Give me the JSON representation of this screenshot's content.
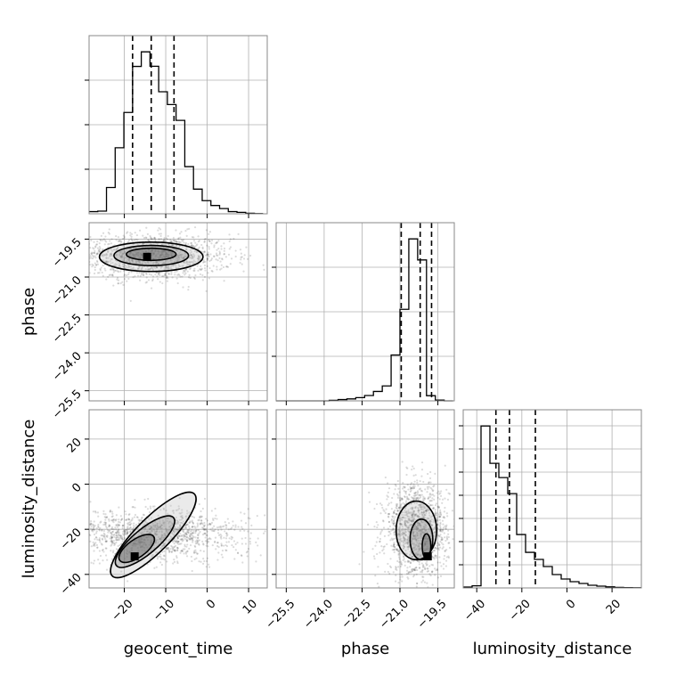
{
  "chart_data": {
    "type": "corner",
    "parameters": [
      "geocent_time",
      "phase",
      "luminosity_distance"
    ],
    "axis_labels": {
      "geocent_time": "geocent_time",
      "phase": "phase",
      "luminosity_distance": "luminosity_distance"
    },
    "ranges": {
      "geocent_time": [
        -28.5,
        14.5
      ],
      "phase": [
        -25.9,
        -18.85
      ],
      "luminosity_distance": [
        -46,
        33
      ]
    },
    "ticks": {
      "geocent_time": {
        "values": [
          -20,
          -10,
          0,
          10
        ],
        "labels": [
          "−20",
          "−10",
          "0",
          "10"
        ]
      },
      "phase": {
        "values": [
          -25.5,
          -24.0,
          -22.5,
          -21.0,
          -19.5
        ],
        "labels": [
          "−25.5",
          "−24.0",
          "−22.5",
          "−21.0",
          "−19.5"
        ]
      },
      "luminosity_distance": {
        "values": [
          -40,
          -20,
          0,
          20
        ],
        "labels": [
          "−40",
          "−20",
          "0",
          "20"
        ]
      }
    },
    "hist_yticks": {
      "geocent_time": [
        0.25,
        0.5,
        0.75
      ],
      "phase": [
        0.25,
        0.5,
        0.75
      ],
      "luminosity_distance": [
        0.13,
        0.26,
        0.39,
        0.52,
        0.65,
        0.78,
        0.91
      ]
    },
    "quantiles": {
      "geocent_time": [
        -18,
        -13.5,
        -8
      ],
      "phase": [
        -20.95,
        -20.2,
        -19.75
      ],
      "luminosity_distance": [
        -31.5,
        -25.5,
        -14
      ]
    },
    "histograms": {
      "geocent_time": {
        "bin_edges": [
          -28.5,
          -26.4,
          -24.3,
          -22.2,
          -20.1,
          -18.0,
          -15.9,
          -13.8,
          -11.7,
          -9.6,
          -7.5,
          -5.4,
          -3.3,
          -1.2,
          0.9,
          3.0,
          5.1,
          7.2,
          9.3,
          11.4,
          13.5
        ],
        "values": [
          0.012,
          0.015,
          0.146,
          0.367,
          0.563,
          0.819,
          0.9,
          0.82,
          0.678,
          0.607,
          0.519,
          0.262,
          0.137,
          0.073,
          0.046,
          0.029,
          0.012,
          0.008,
          0.003,
          0.001
        ]
      },
      "phase": {
        "bin_edges": [
          -25.9,
          -25.55,
          -25.2,
          -24.85,
          -24.5,
          -24.15,
          -23.8,
          -23.45,
          -23.1,
          -22.75,
          -22.4,
          -22.05,
          -21.7,
          -21.35,
          -21.0,
          -20.65,
          -20.3,
          -19.95,
          -19.6,
          -19.25,
          -18.9
        ],
        "values": [
          0,
          0,
          0,
          0,
          0,
          0,
          0.003,
          0.008,
          0.012,
          0.02,
          0.033,
          0.058,
          0.092,
          0.283,
          0.565,
          1.0,
          0.87,
          0.032,
          0.005,
          0
        ]
      },
      "luminosity_distance": {
        "bin_edges": [
          -46,
          -42.05,
          -38.1,
          -34.15,
          -30.2,
          -26.25,
          -22.3,
          -18.35,
          -14.4,
          -10.45,
          -6.5,
          -2.55,
          1.4,
          5.35,
          9.3,
          13.25,
          17.2,
          21.15,
          25.1,
          29.05,
          33.0
        ],
        "values": [
          0.005,
          0.012,
          0.91,
          0.7,
          0.62,
          0.53,
          0.3,
          0.2,
          0.16,
          0.12,
          0.075,
          0.05,
          0.035,
          0.025,
          0.015,
          0.01,
          0.006,
          0.003,
          0.002,
          0.001
        ]
      }
    },
    "pairs": [
      {
        "x": "geocent_time",
        "y": "phase",
        "peak": {
          "x": -14.5,
          "y": -20.2
        },
        "contour_levels": [
          {
            "center": [
              -13.5,
              -20.1
            ],
            "rx": 6.0,
            "ry": 0.24
          },
          {
            "center": [
              -13.5,
              -20.15
            ],
            "rx": 9.0,
            "ry": 0.4
          },
          {
            "center": [
              -13.5,
              -20.2
            ],
            "rx": 12.5,
            "ry": 0.58
          }
        ]
      },
      {
        "x": "geocent_time",
        "y": "luminosity_distance",
        "peak": {
          "x": -17.5,
          "y": -32
        },
        "contour_levels": [
          {
            "center": [
              -17.0,
              -28.5
            ],
            "rx": 5.0,
            "ry": 4.0,
            "rot": -35
          },
          {
            "center": [
              -15.0,
              -25.5
            ],
            "rx": 9.0,
            "ry": 5.5,
            "rot": -40
          },
          {
            "center": [
              -13.0,
              -22.5
            ],
            "rx": 14.0,
            "ry": 7.5,
            "rot": -45
          }
        ]
      },
      {
        "x": "phase",
        "y": "luminosity_distance",
        "peak": {
          "x": -19.9,
          "y": -32
        },
        "contour_levels": [
          {
            "center": [
              -19.95,
              -27.5
            ],
            "rx": 0.17,
            "ry": 5.5
          },
          {
            "center": [
              -20.15,
              -24.5
            ],
            "rx": 0.45,
            "ry": 9.0
          },
          {
            "center": [
              -20.35,
              -20.5
            ],
            "rx": 0.8,
            "ry": 13.0
          }
        ]
      }
    ]
  }
}
